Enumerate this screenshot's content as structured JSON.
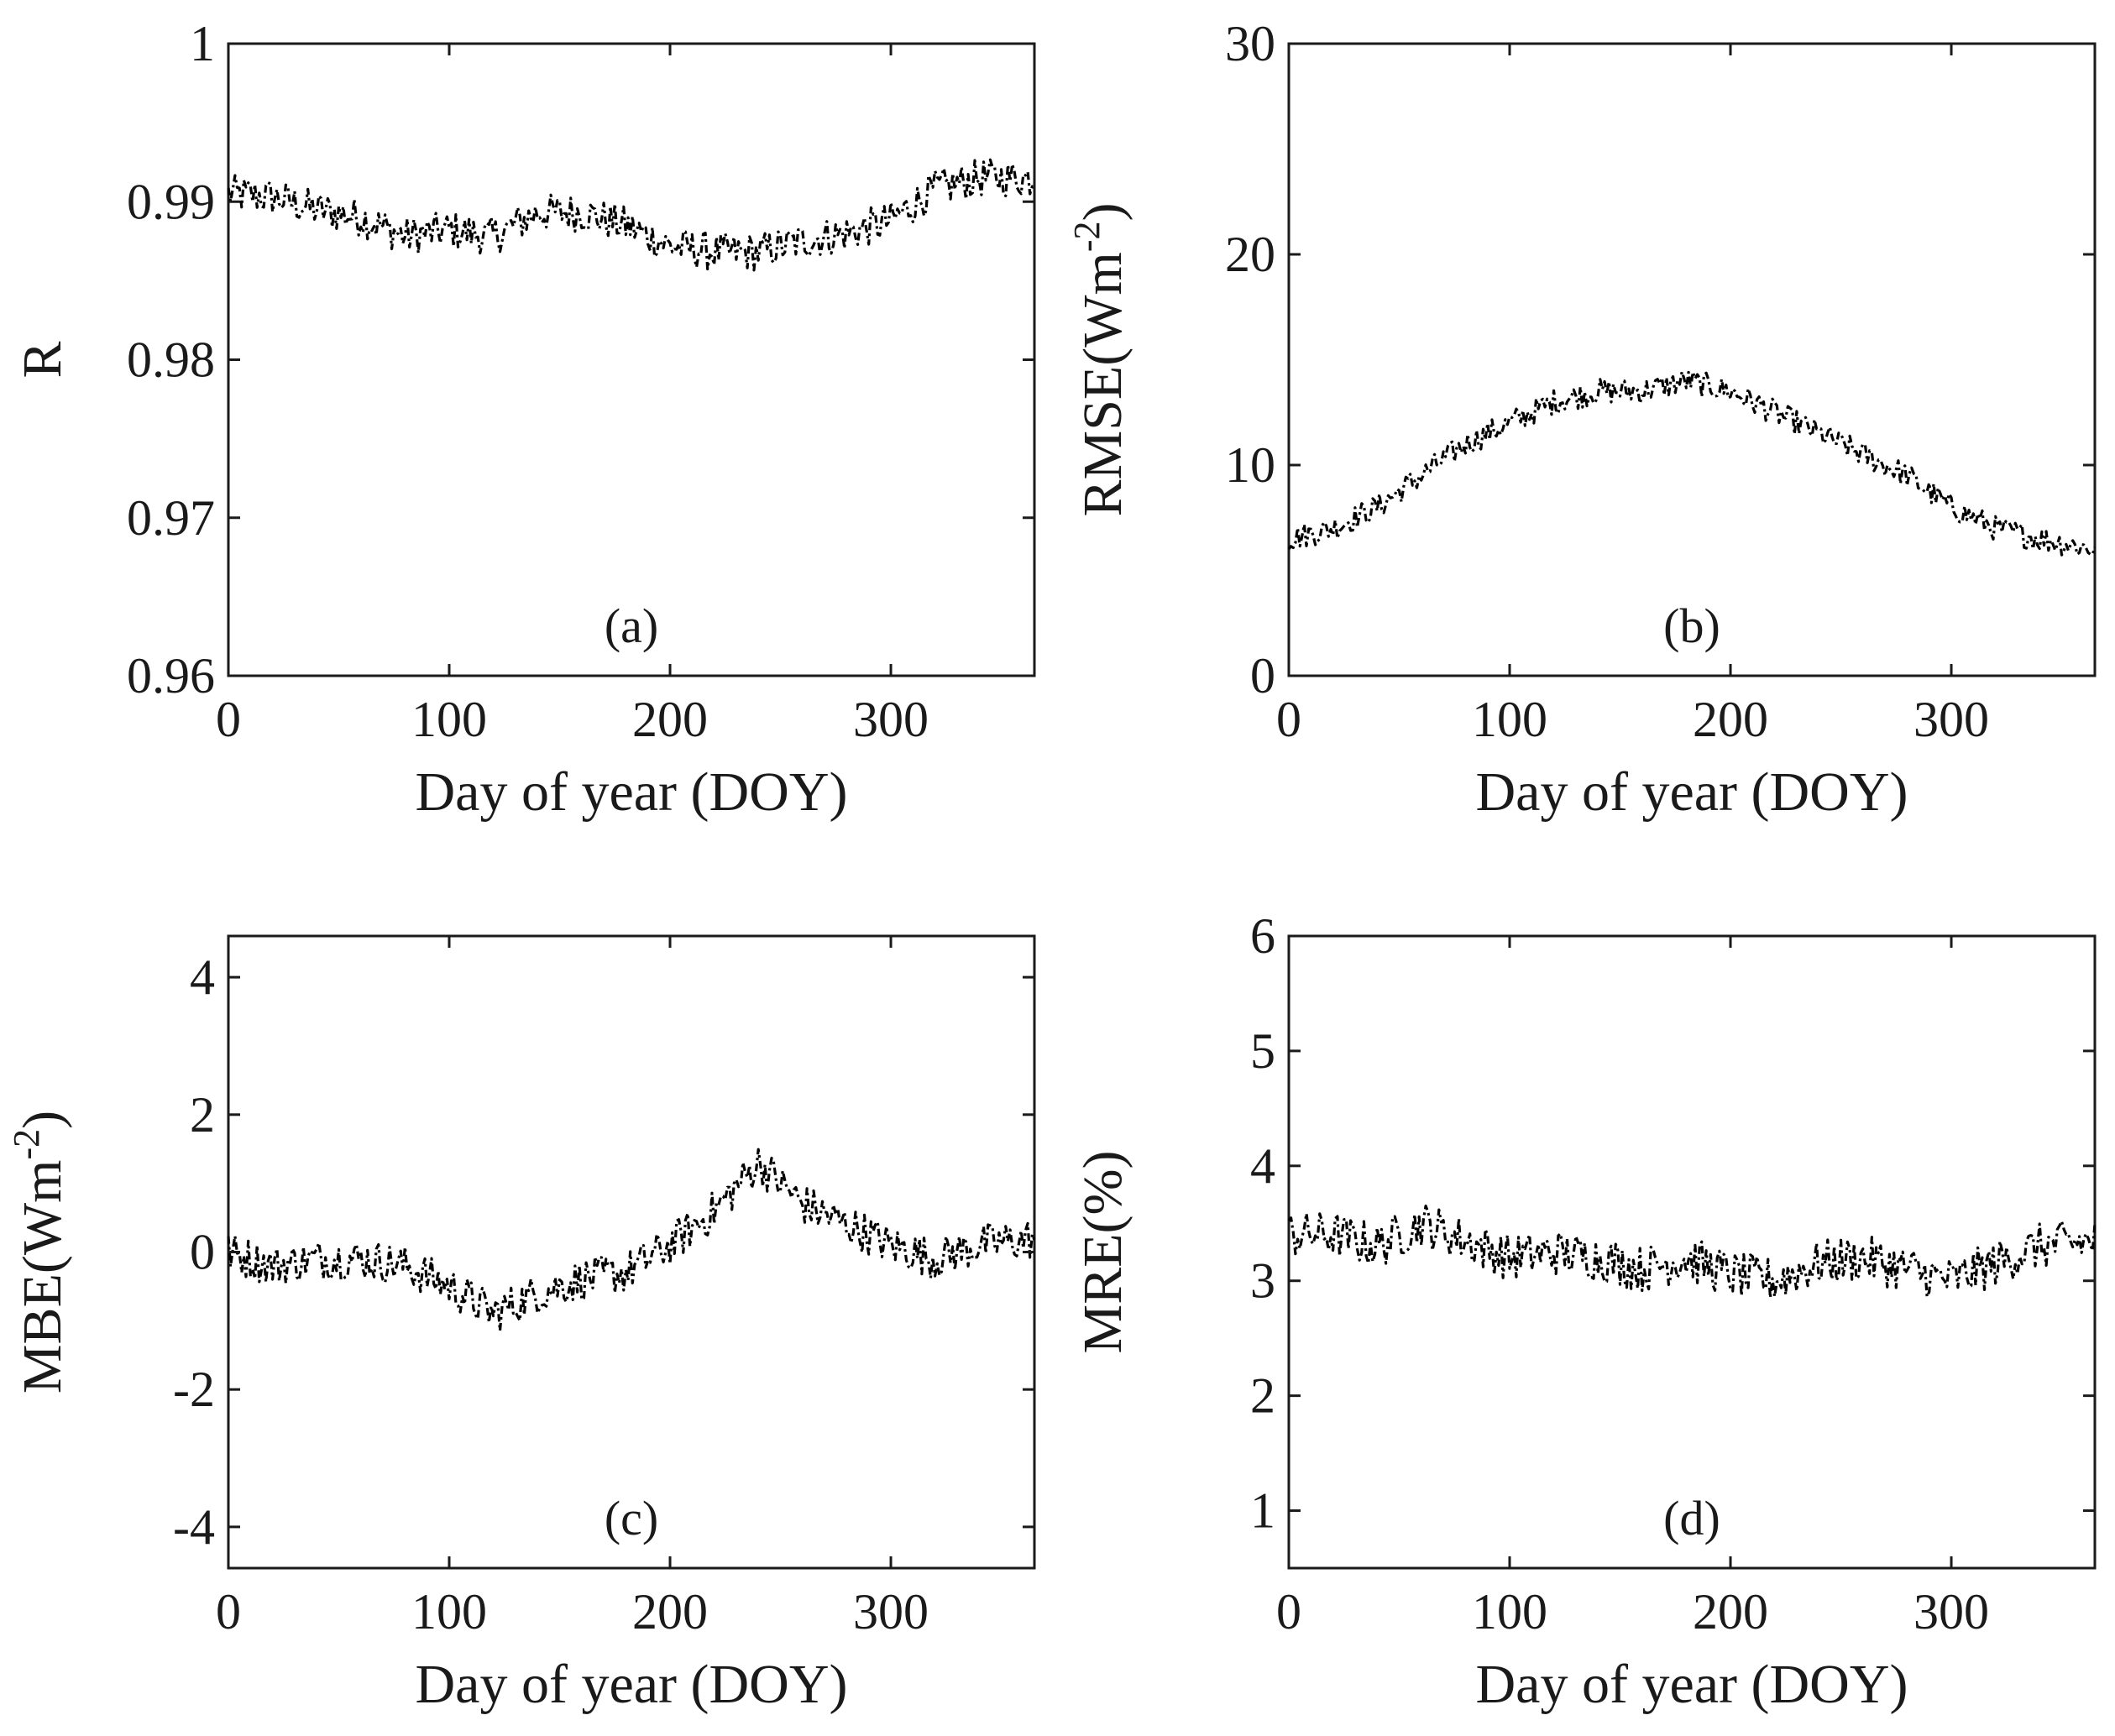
{
  "chart_data": [
    {
      "id": "a",
      "type": "line",
      "panel_label": "(a)",
      "ylabel": "R",
      "ylabel_superscript": "",
      "ylabel_suffix": "",
      "xlabel": "Day of year (DOY)",
      "xlim": [
        0,
        365
      ],
      "ylim": [
        0.96,
        1.0
      ],
      "xticks": [
        0,
        100,
        200,
        300
      ],
      "xtick_labels": [
        "0",
        "100",
        "200",
        "300"
      ],
      "yticks": [
        0.96,
        0.97,
        0.98,
        0.99,
        1.0
      ],
      "ytick_labels": [
        "0.96",
        "0.97",
        "0.98",
        "0.99",
        "1"
      ],
      "grid": false,
      "series": [
        {
          "name": "R",
          "x": [
            0,
            20,
            40,
            60,
            80,
            100,
            120,
            140,
            160,
            180,
            200,
            220,
            240,
            260,
            280,
            300,
            320,
            340,
            365
          ],
          "y": [
            0.9905,
            0.9903,
            0.9895,
            0.989,
            0.9878,
            0.9882,
            0.9878,
            0.9893,
            0.9893,
            0.9885,
            0.9872,
            0.9868,
            0.9868,
            0.9875,
            0.988,
            0.9888,
            0.9908,
            0.9915,
            0.9915
          ],
          "noise": 0.0012
        }
      ]
    },
    {
      "id": "b",
      "type": "line",
      "panel_label": "(b)",
      "ylabel": "RMSE(Wm",
      "ylabel_superscript": "-2",
      "ylabel_suffix": ")",
      "xlabel": "Day of year (DOY)",
      "xlim": [
        0,
        365
      ],
      "ylim": [
        0,
        30
      ],
      "xticks": [
        0,
        100,
        200,
        300
      ],
      "xtick_labels": [
        "0",
        "100",
        "200",
        "300"
      ],
      "yticks": [
        0,
        10,
        20,
        30
      ],
      "ytick_labels": [
        "0",
        "10",
        "20",
        "30"
      ],
      "grid": false,
      "series": [
        {
          "name": "RMSE",
          "x": [
            0,
            20,
            40,
            60,
            80,
            100,
            120,
            140,
            160,
            180,
            200,
            220,
            240,
            260,
            280,
            300,
            320,
            340,
            365
          ],
          "y": [
            6.5,
            7.0,
            8.0,
            9.5,
            11.0,
            12.0,
            13.0,
            13.5,
            13.5,
            14.0,
            13.5,
            12.5,
            11.5,
            10.5,
            9.5,
            8.0,
            7.0,
            6.5,
            6.0
          ],
          "noise": 0.6
        }
      ]
    },
    {
      "id": "c",
      "type": "line",
      "panel_label": "(c)",
      "ylabel": "MBE(Wm",
      "ylabel_superscript": "-2",
      "ylabel_suffix": ")",
      "xlabel": "Day of year (DOY)",
      "xlim": [
        0,
        365
      ],
      "ylim": [
        -4.6,
        4.6
      ],
      "xticks": [
        0,
        100,
        200,
        300
      ],
      "xtick_labels": [
        "0",
        "100",
        "200",
        "300"
      ],
      "yticks": [
        -4,
        -2,
        0,
        2,
        4
      ],
      "ytick_labels": [
        "-4",
        "-2",
        "0",
        "2",
        "4"
      ],
      "grid": false,
      "series": [
        {
          "name": "MBE",
          "x": [
            0,
            20,
            40,
            60,
            80,
            100,
            120,
            140,
            160,
            180,
            200,
            220,
            240,
            260,
            280,
            300,
            320,
            340,
            365
          ],
          "y": [
            0.0,
            -0.2,
            -0.1,
            -0.1,
            -0.2,
            -0.5,
            -0.9,
            -0.6,
            -0.4,
            -0.3,
            0.1,
            0.6,
            1.3,
            0.7,
            0.4,
            0.1,
            -0.1,
            0.1,
            0.2
          ],
          "noise": 0.3
        }
      ]
    },
    {
      "id": "d",
      "type": "line",
      "panel_label": "(d)",
      "ylabel": "MRE(%)",
      "ylabel_superscript": "",
      "ylabel_suffix": "",
      "xlabel": "Day of year (DOY)",
      "xlim": [
        0,
        365
      ],
      "ylim": [
        0.5,
        6.0
      ],
      "xticks": [
        0,
        100,
        200,
        300
      ],
      "xtick_labels": [
        "0",
        "100",
        "200",
        "300"
      ],
      "yticks": [
        1,
        2,
        3,
        4,
        5,
        6
      ],
      "ytick_labels": [
        "1",
        "2",
        "3",
        "4",
        "5",
        "6"
      ],
      "grid": false,
      "series": [
        {
          "name": "MRE",
          "x": [
            0,
            20,
            40,
            60,
            80,
            100,
            120,
            140,
            160,
            180,
            200,
            220,
            240,
            260,
            280,
            300,
            320,
            340,
            365
          ],
          "y": [
            3.4,
            3.4,
            3.3,
            3.5,
            3.35,
            3.2,
            3.25,
            3.2,
            3.1,
            3.2,
            3.05,
            3.0,
            3.15,
            3.2,
            3.1,
            3.0,
            3.15,
            3.3,
            3.35
          ],
          "noise": 0.2
        }
      ]
    }
  ]
}
